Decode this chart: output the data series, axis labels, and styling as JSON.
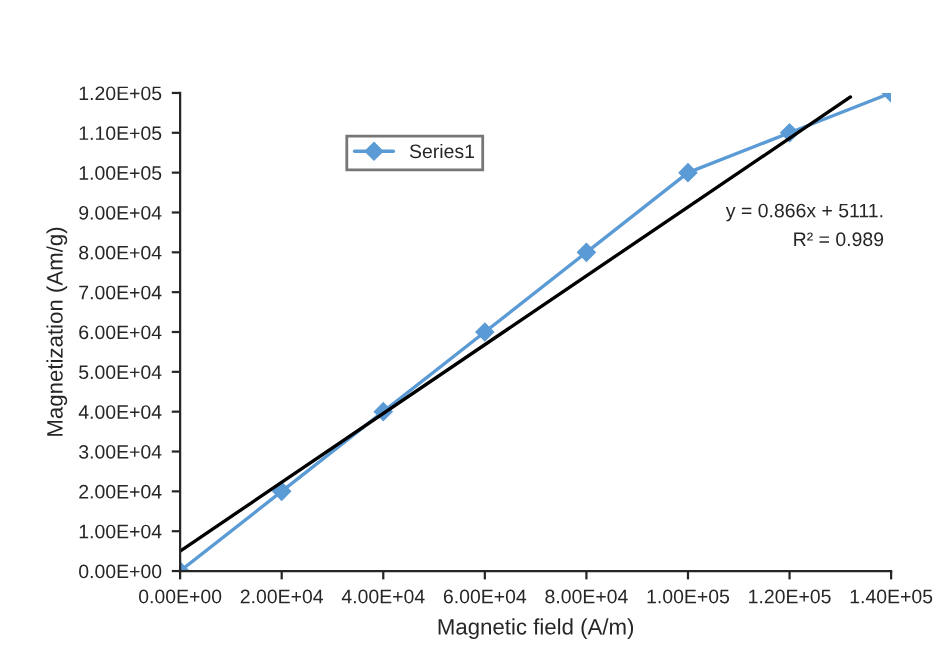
{
  "chart_data": {
    "type": "line",
    "xlabel": "Magnetic field (A/m)",
    "ylabel": "Magnetization (Am/g)",
    "series": [
      {
        "name": "Series1",
        "type": "line",
        "color": "#5b9bd5",
        "marker": "diamond",
        "x": [
          0,
          20000,
          40000,
          60000,
          80000,
          100000,
          120000,
          140000
        ],
        "values": [
          0,
          20000,
          40000,
          60000,
          80000,
          100000,
          110000,
          120000
        ]
      },
      {
        "type": "line",
        "color": "#000000",
        "marker": "none",
        "x": [
          0,
          132000
        ],
        "values": [
          5000,
          119000
        ]
      }
    ],
    "xlim": [
      0,
      140000
    ],
    "ylim": [
      0,
      120000
    ],
    "xticks": [
      {
        "value": 0,
        "label": "0.00E+00"
      },
      {
        "value": 20000,
        "label": "2.00E+04"
      },
      {
        "value": 40000,
        "label": "4.00E+04"
      },
      {
        "value": 60000,
        "label": "6.00E+04"
      },
      {
        "value": 80000,
        "label": "8.00E+04"
      },
      {
        "value": 100000,
        "label": "1.00E+05"
      },
      {
        "value": 120000,
        "label": "1.20E+05"
      },
      {
        "value": 140000,
        "label": "1.40E+05"
      }
    ],
    "yticks": [
      {
        "value": 0,
        "label": "0.00E+00"
      },
      {
        "value": 10000,
        "label": "1.00E+04"
      },
      {
        "value": 20000,
        "label": "2.00E+04"
      },
      {
        "value": 30000,
        "label": "3.00E+04"
      },
      {
        "value": 40000,
        "label": "4.00E+04"
      },
      {
        "value": 50000,
        "label": "5.00E+04"
      },
      {
        "value": 60000,
        "label": "6.00E+04"
      },
      {
        "value": 70000,
        "label": "7.00E+04"
      },
      {
        "value": 80000,
        "label": "8.00E+04"
      },
      {
        "value": 90000,
        "label": "9.00E+04"
      },
      {
        "value": 100000,
        "label": "1.00E+05"
      },
      {
        "value": 110000,
        "label": "1.10E+05"
      },
      {
        "value": 120000,
        "label": "1.20E+05"
      }
    ],
    "annotations": [
      "y = 0.866x + 5111.",
      "R² = 0.989"
    ],
    "grid": false,
    "legend": "top"
  }
}
